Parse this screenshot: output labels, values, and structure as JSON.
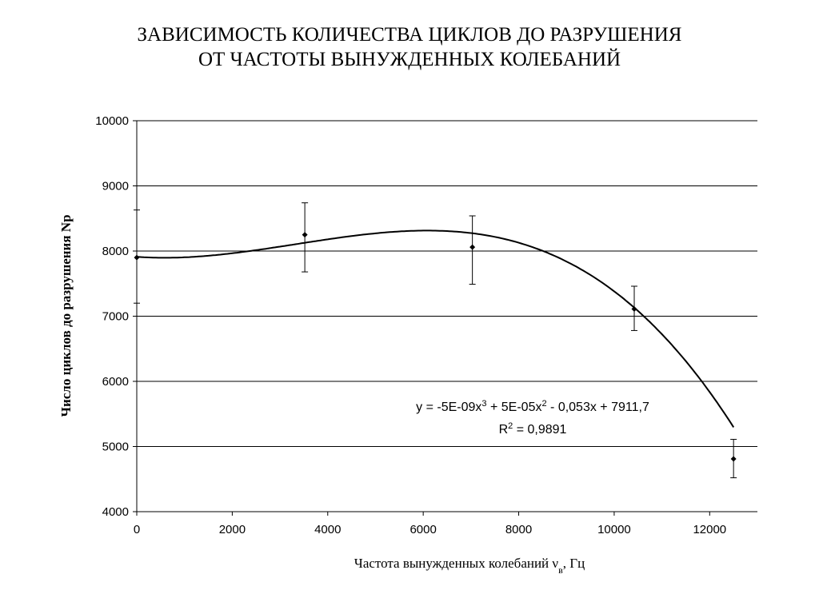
{
  "chart_data": {
    "type": "scatter",
    "title_lines": [
      "ЗАВИСИМОСТЬ КОЛИЧЕСТВА ЦИКЛОВ ДО РАЗРУШЕНИЯ",
      "ОТ ЧАСТОТЫ ВЫНУЖДЕННЫХ КОЛЕБАНИЙ"
    ],
    "xlabel_main": "Частота вынужденных колебаний ν",
    "xlabel_sub": "в",
    "xlabel_unit": ", Гц",
    "ylabel": "Число циклов до разрушения Np",
    "xlim": [
      0,
      13000
    ],
    "ylim": [
      4000,
      10000
    ],
    "xticks": [
      0,
      2000,
      4000,
      6000,
      8000,
      10000,
      12000
    ],
    "yticks": [
      4000,
      5000,
      6000,
      7000,
      8000,
      9000,
      10000
    ],
    "grid": "horizontal",
    "points": [
      {
        "x": 0,
        "y": 7900,
        "err_low": 7200,
        "err_high": 8630
      },
      {
        "x": 3520,
        "y": 8250,
        "err_low": 7680,
        "err_high": 8740
      },
      {
        "x": 7030,
        "y": 8060,
        "err_low": 7490,
        "err_high": 8540
      },
      {
        "x": 10420,
        "y": 7110,
        "err_low": 6780,
        "err_high": 7460
      },
      {
        "x": 12500,
        "y": 4810,
        "err_low": 4520,
        "err_high": 5110
      }
    ],
    "trendline": {
      "type": "polynomial",
      "order": 3,
      "coefficients": [
        -5e-09,
        5e-05,
        -0.053,
        7911.7
      ],
      "equation_parts": [
        "y = -5E-09x",
        "3",
        " + 5E-05x",
        "2",
        " - 0,053x + 7911,7"
      ],
      "r2_parts": [
        "R",
        "2",
        " = 0,9891"
      ]
    }
  }
}
